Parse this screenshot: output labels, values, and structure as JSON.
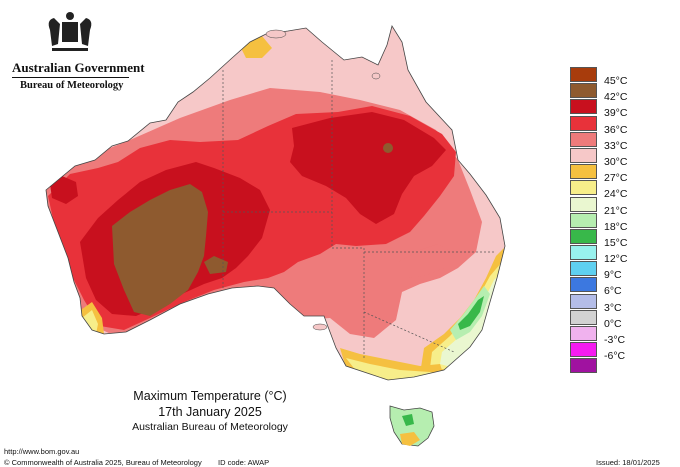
{
  "header": {
    "government": "Australian Government",
    "bureau": "Bureau of Meteorology"
  },
  "map": {
    "title": "Maximum Temperature (°C)",
    "date": "17th January 2025",
    "source": "Australian Bureau of Meteorology"
  },
  "legend": [
    {
      "label": "45°C",
      "color": "#a83c0c"
    },
    {
      "label": "42°C",
      "color": "#8e5a2f"
    },
    {
      "label": "39°C",
      "color": "#c8101e"
    },
    {
      "label": "36°C",
      "color": "#e8323a"
    },
    {
      "label": "33°C",
      "color": "#ee7b7b"
    },
    {
      "label": "30°C",
      "color": "#f6c8c8"
    },
    {
      "label": "27°C",
      "color": "#f5c040"
    },
    {
      "label": "24°C",
      "color": "#f7ee8a"
    },
    {
      "label": "21°C",
      "color": "#eaf7d0"
    },
    {
      "label": "18°C",
      "color": "#b6eeb0"
    },
    {
      "label": "15°C",
      "color": "#38b84a"
    },
    {
      "label": "12°C",
      "color": "#98f2ee"
    },
    {
      "label": "9°C",
      "color": "#5fd0f0"
    },
    {
      "label": "6°C",
      "color": "#3c78e0"
    },
    {
      "label": "3°C",
      "color": "#b4bde8"
    },
    {
      "label": "0°C",
      "color": "#d2d2d2"
    },
    {
      "label": "-3°C",
      "color": "#f0b2ee"
    },
    {
      "label": "-6°C",
      "color": "#f51cf0"
    },
    {
      "label": "",
      "color": "#a012a0"
    }
  ],
  "footer": {
    "url": "http://www.bom.gov.au",
    "copyright": "© Commonwealth of Australia 2025, Bureau of Meteorology",
    "id_code": "ID code: AWAP",
    "issued": "Issued: 18/01/2025"
  }
}
